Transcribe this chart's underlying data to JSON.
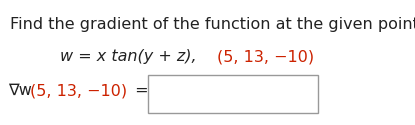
{
  "line1": "Find the gradient of the function at the given point.",
  "line2_italic": "w = x tan(y + z),",
  "line2_red": "(5, 13, −10)",
  "line3_nabla": "∇w",
  "line3_red": "(5, 13, −10)",
  "line3_eq": " =",
  "background_color": "#ffffff",
  "black": "#222222",
  "red": "#cc2200",
  "fontsize": 11.5
}
